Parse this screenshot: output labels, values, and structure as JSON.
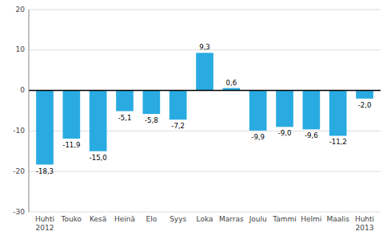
{
  "chart_data": {
    "type": "bar",
    "categories": [
      "Huhti\n2012",
      "Touko",
      "Kesä",
      "Heinä",
      "Elo",
      "Syys",
      "Loka",
      "Marras",
      "Joulu",
      "Tammi",
      "Helmi",
      "Maalis",
      "Huhti\n2013"
    ],
    "values": [
      -18.3,
      -11.9,
      -15.0,
      -5.1,
      -5.8,
      -7.2,
      9.3,
      0.6,
      -9.9,
      -9.0,
      -9.6,
      -11.2,
      -2.0
    ],
    "value_labels": [
      "-18,3",
      "-11,9",
      "-15,0",
      "-5,1",
      "-5,8",
      "-7,2",
      "9,3",
      "0,6",
      "-9,9",
      "-9,0",
      "-9,6",
      "-11,2",
      "-2,0"
    ],
    "data_labels": true,
    "color": "#29abe2",
    "ylim": [
      -30,
      20
    ],
    "yticks": [
      -30,
      -20,
      -10,
      0,
      10,
      20
    ],
    "grid": true
  }
}
